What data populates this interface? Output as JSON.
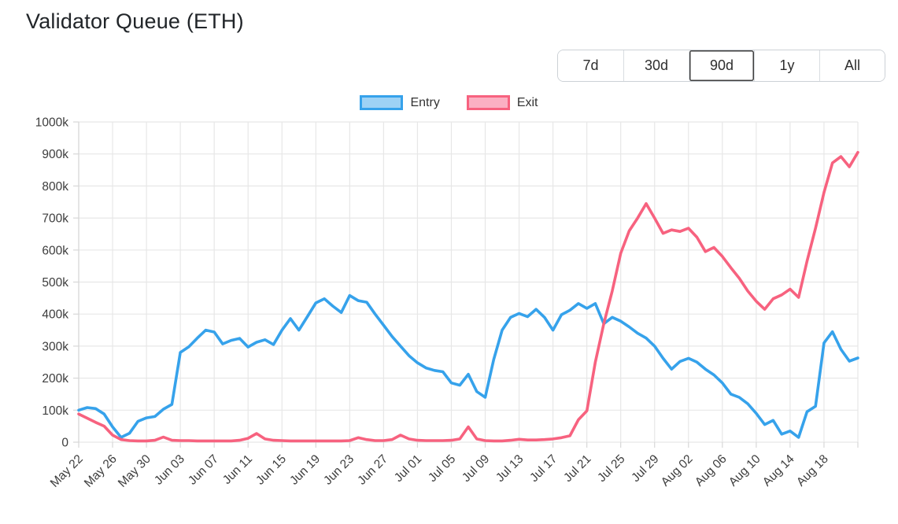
{
  "title": "Validator Queue (ETH)",
  "range_selector": {
    "options": [
      "7d",
      "30d",
      "90d",
      "1y",
      "All"
    ],
    "active": "90d"
  },
  "colors": {
    "entry_line": "#36a2eb",
    "entry_legend_fill": "#9ed2f5",
    "exit_line": "#f7627f",
    "exit_legend_fill": "#fbb0c3",
    "gridline": "#e7e7e7"
  },
  "chart_data": {
    "type": "line",
    "title": "Validator Queue (ETH)",
    "unit": "thousand ETH (k)",
    "ylim_k": [
      0,
      1000
    ],
    "y_ticks": [
      "0",
      "100k",
      "200k",
      "300k",
      "400k",
      "500k",
      "600k",
      "700k",
      "800k",
      "900k",
      "1000k"
    ],
    "x_tick_every": 4,
    "x_tick_labels": [
      "May 22",
      "May 26",
      "May 30",
      "Jun 03",
      "Jun 07",
      "Jun 11",
      "Jun 15",
      "Jun 19",
      "Jun 23",
      "Jun 27",
      "Jul 01",
      "Jul 05",
      "Jul 09",
      "Jul 13",
      "Jul 17",
      "Jul 21",
      "Jul 25",
      "Jul 29",
      "Aug 02",
      "Aug 06",
      "Aug 10",
      "Aug 14",
      "Aug 18"
    ],
    "grid": true,
    "legend_position": "top",
    "x": [
      "May 22",
      "May 23",
      "May 24",
      "May 25",
      "May 26",
      "May 27",
      "May 28",
      "May 29",
      "May 30",
      "May 31",
      "Jun 01",
      "Jun 02",
      "Jun 03",
      "Jun 04",
      "Jun 05",
      "Jun 06",
      "Jun 07",
      "Jun 08",
      "Jun 09",
      "Jun 10",
      "Jun 11",
      "Jun 12",
      "Jun 13",
      "Jun 14",
      "Jun 15",
      "Jun 16",
      "Jun 17",
      "Jun 18",
      "Jun 19",
      "Jun 20",
      "Jun 21",
      "Jun 22",
      "Jun 23",
      "Jun 24",
      "Jun 25",
      "Jun 26",
      "Jun 27",
      "Jun 28",
      "Jun 29",
      "Jun 30",
      "Jul 01",
      "Jul 02",
      "Jul 03",
      "Jul 04",
      "Jul 05",
      "Jul 06",
      "Jul 07",
      "Jul 08",
      "Jul 09",
      "Jul 10",
      "Jul 11",
      "Jul 12",
      "Jul 13",
      "Jul 14",
      "Jul 15",
      "Jul 16",
      "Jul 17",
      "Jul 18",
      "Jul 19",
      "Jul 20",
      "Jul 21",
      "Jul 22",
      "Jul 23",
      "Jul 24",
      "Jul 25",
      "Jul 26",
      "Jul 27",
      "Jul 28",
      "Jul 29",
      "Jul 30",
      "Jul 31",
      "Aug 01",
      "Aug 02",
      "Aug 03",
      "Aug 04",
      "Aug 05",
      "Aug 06",
      "Aug 07",
      "Aug 08",
      "Aug 09",
      "Aug 10",
      "Aug 11",
      "Aug 12",
      "Aug 13",
      "Aug 14",
      "Aug 15",
      "Aug 16",
      "Aug 17",
      "Aug 18",
      "Aug 19",
      "Aug 20",
      "Aug 21",
      "Aug 22"
    ],
    "series": [
      {
        "name": "Entry",
        "color": "#36a2eb",
        "legend_fill": "#9ed2f5",
        "values_k": [
          100,
          108,
          105,
          88,
          48,
          15,
          28,
          65,
          76,
          80,
          103,
          118,
          280,
          298,
          325,
          350,
          344,
          307,
          318,
          324,
          297,
          312,
          320,
          305,
          350,
          386,
          350,
          392,
          435,
          448,
          425,
          405,
          458,
          442,
          437,
          400,
          365,
          330,
          300,
          270,
          248,
          232,
          224,
          220,
          185,
          178,
          212,
          158,
          140,
          258,
          350,
          390,
          402,
          392,
          415,
          390,
          350,
          398,
          412,
          433,
          418,
          433,
          370,
          390,
          378,
          360,
          340,
          325,
          300,
          262,
          228,
          252,
          262,
          250,
          228,
          210,
          185,
          150,
          140,
          120,
          90,
          55,
          68,
          25,
          35,
          15,
          95,
          112,
          310,
          345,
          290,
          253,
          263
        ]
      },
      {
        "name": "Exit",
        "color": "#f7627f",
        "legend_fill": "#fbb0c3",
        "values_k": [
          88,
          75,
          62,
          50,
          22,
          8,
          5,
          4,
          4,
          6,
          16,
          6,
          5,
          5,
          4,
          4,
          4,
          4,
          4,
          6,
          12,
          27,
          10,
          6,
          5,
          4,
          4,
          4,
          4,
          4,
          4,
          4,
          5,
          14,
          8,
          5,
          5,
          8,
          22,
          10,
          6,
          5,
          5,
          5,
          6,
          10,
          48,
          10,
          5,
          4,
          4,
          6,
          9,
          7,
          7,
          8,
          10,
          14,
          20,
          70,
          98,
          250,
          370,
          472,
          590,
          660,
          700,
          745,
          700,
          652,
          663,
          658,
          668,
          640,
          595,
          608,
          580,
          545,
          512,
          472,
          440,
          415,
          448,
          460,
          478,
          452,
          565,
          668,
          780,
          872,
          892,
          860,
          905
        ]
      }
    ]
  }
}
